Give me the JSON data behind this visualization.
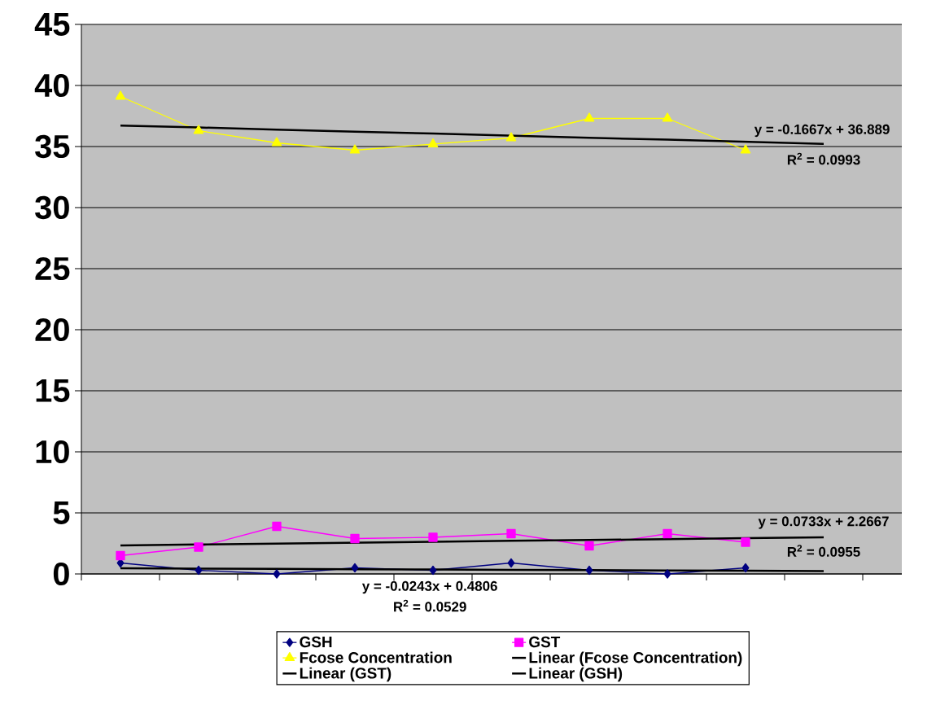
{
  "chart_data": {
    "type": "line",
    "categories": [
      null,
      null,
      null,
      null,
      null,
      null,
      null,
      null,
      null,
      null
    ],
    "ylim": [
      0,
      45
    ],
    "yticks": [
      0,
      5,
      10,
      15,
      20,
      25,
      30,
      35,
      40,
      45
    ],
    "tick_labels": "y",
    "grid": "y",
    "legend": "bottom",
    "line_style": "solid",
    "series": [
      {
        "name": "GSH",
        "color": "#000080",
        "marker": "diamond",
        "values": [
          0.9,
          0.3,
          0.0,
          0.5,
          0.3,
          0.9,
          0.3,
          0.0,
          0.5,
          null
        ]
      },
      {
        "name": "GST",
        "color": "#ff00ff",
        "marker": "square",
        "values": [
          1.5,
          2.2,
          3.9,
          2.9,
          3.0,
          3.3,
          2.3,
          3.3,
          2.6,
          null
        ]
      },
      {
        "name": "Fcose Concentration",
        "color": "#ffff00",
        "marker": "triangle",
        "values": [
          39.1,
          36.3,
          35.3,
          34.7,
          35.2,
          35.7,
          37.3,
          37.3,
          34.7,
          null
        ]
      },
      {
        "name": "Linear (Fcose Concentration)",
        "color": "#000000",
        "marker": "none",
        "values": [
          36.72,
          36.56,
          36.39,
          36.22,
          36.06,
          35.89,
          35.72,
          35.56,
          35.39,
          35.22
        ]
      },
      {
        "name": "Linear (GST)",
        "color": "#000000",
        "marker": "none",
        "values": [
          2.34,
          2.41,
          2.49,
          2.56,
          2.63,
          2.71,
          2.78,
          2.85,
          2.93,
          3.0
        ]
      },
      {
        "name": "Linear (GSH)",
        "color": "#000000",
        "marker": "none",
        "values": [
          0.46,
          0.43,
          0.41,
          0.38,
          0.36,
          0.33,
          0.31,
          0.29,
          0.26,
          0.24
        ]
      }
    ],
    "annotations": [
      "y = -0.1667x + 36.889",
      "R$^{2}$ = 0.0993",
      "y = 0.0733x + 2.2667",
      "R$^{2}$ = 0.0955",
      "y = -0.0243x + 0.4806",
      "R$^{2}$ = 0.0529"
    ]
  }
}
